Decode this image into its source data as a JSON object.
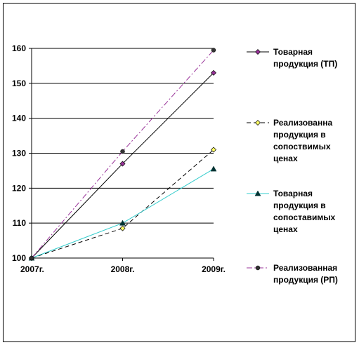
{
  "chart_data": {
    "type": "line",
    "x": [
      "2007г.",
      "2008г.",
      "2009г."
    ],
    "ylim": [
      100,
      160
    ],
    "yticks": [
      100,
      110,
      120,
      130,
      140,
      150,
      160
    ],
    "grid": true,
    "legend_placement": "right",
    "series": [
      {
        "name": "Товарная продукция (ТП)",
        "name_lines": [
          "Товарная",
          "продукция (ТП)"
        ],
        "values": [
          100,
          127,
          153
        ],
        "color": "#000000",
        "marker_color": "#993399",
        "marker": "diamond",
        "dash": ""
      },
      {
        "name": "Реализованна продукция в сопоствимых ценах",
        "name_lines": [
          "Реализованна",
          "продукция в",
          "сопоствимых",
          "ценах"
        ],
        "values": [
          100,
          108.5,
          131
        ],
        "color": "#000000",
        "marker_color": "#ffff66",
        "marker": "diamond",
        "dash": "6,4"
      },
      {
        "name": "Товарная продукция в сопоставимых ценах",
        "name_lines": [
          "Товарная",
          "продукция в",
          "сопоставимых",
          "ценах"
        ],
        "values": [
          100,
          110,
          125.5
        ],
        "color": "#33cccc",
        "marker_color": "#003333",
        "marker": "triangle",
        "dash": ""
      },
      {
        "name": "Реализованная продукция (РП)",
        "name_lines": [
          "Реализованная",
          "продукция (РП)"
        ],
        "values": [
          100,
          130.5,
          159.5
        ],
        "color": "#993399",
        "marker_color": "#333333",
        "marker": "circle",
        "dash": "8,3,2,3"
      }
    ]
  }
}
